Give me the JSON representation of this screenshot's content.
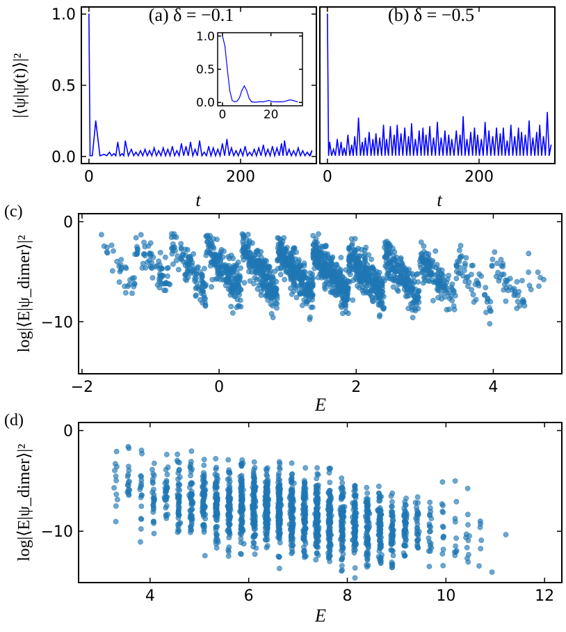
{
  "chart_data": [
    {
      "id": "a",
      "type": "line",
      "panel_label": "(a)",
      "title": "(a) δ = −0.1",
      "xlabel": "t",
      "ylabel": "|⟨ψ|ψ(t)⟩|²",
      "xlim": [
        -10,
        300
      ],
      "ylim": [
        -0.05,
        1.05
      ],
      "xticks": [
        0,
        200
      ],
      "xtick_labels": [
        "0",
        "200"
      ],
      "yticks": [
        0.0,
        0.5,
        1.0
      ],
      "ytick_labels": [
        "0.0",
        "0.5",
        "1.0"
      ],
      "color": "#0000ff",
      "peaks": [
        [
          0,
          1.0
        ],
        [
          9,
          0.25
        ],
        [
          20,
          0.015
        ],
        [
          27,
          0.03
        ],
        [
          33,
          0.02
        ],
        [
          38,
          0.1
        ],
        [
          44,
          0.02
        ],
        [
          48,
          0.11
        ],
        [
          56,
          0.05
        ],
        [
          62,
          0.03
        ],
        [
          68,
          0.04
        ],
        [
          74,
          0.05
        ],
        [
          80,
          0.04
        ],
        [
          86,
          0.06
        ],
        [
          92,
          0.04
        ],
        [
          98,
          0.06
        ],
        [
          104,
          0.05
        ],
        [
          110,
          0.07
        ],
        [
          116,
          0.04
        ],
        [
          122,
          0.09
        ],
        [
          128,
          0.07
        ],
        [
          134,
          0.1
        ],
        [
          140,
          0.05
        ],
        [
          146,
          0.11
        ],
        [
          152,
          0.03
        ],
        [
          158,
          0.07
        ],
        [
          164,
          0.06
        ],
        [
          170,
          0.05
        ],
        [
          176,
          0.09
        ],
        [
          182,
          0.12
        ],
        [
          188,
          0.06
        ],
        [
          194,
          0.04
        ],
        [
          200,
          0.05
        ],
        [
          206,
          0.07
        ],
        [
          212,
          0.03
        ],
        [
          218,
          0.05
        ],
        [
          224,
          0.06
        ],
        [
          230,
          0.08
        ],
        [
          236,
          0.05
        ],
        [
          242,
          0.07
        ],
        [
          248,
          0.06
        ],
        [
          254,
          0.09
        ],
        [
          258,
          0.11
        ],
        [
          264,
          0.05
        ],
        [
          270,
          0.04
        ],
        [
          276,
          0.06
        ],
        [
          282,
          0.04
        ],
        [
          288,
          0.03
        ],
        [
          294,
          0.04
        ]
      ],
      "inset": {
        "type": "line",
        "xlim": [
          -2,
          33
        ],
        "ylim": [
          -0.05,
          1.05
        ],
        "xticks": [
          0,
          20
        ],
        "xtick_labels": [
          "0",
          "20"
        ],
        "yticks": [
          0.0,
          0.5,
          1.0
        ],
        "ytick_labels": [
          "0.0",
          "0.5",
          "1.0"
        ],
        "x": [
          0,
          1,
          2,
          3,
          4,
          5,
          6,
          7,
          8,
          9,
          10,
          11,
          12,
          13,
          14,
          15,
          16,
          17,
          18,
          19,
          20,
          21,
          22,
          23,
          24,
          25,
          26,
          27,
          28,
          29,
          30,
          31
        ],
        "y": [
          1.0,
          0.85,
          0.5,
          0.18,
          0.03,
          0.01,
          0.02,
          0.07,
          0.18,
          0.25,
          0.18,
          0.06,
          0.01,
          0.005,
          0.005,
          0.01,
          0.01,
          0.01,
          0.02,
          0.03,
          0.02,
          0.01,
          0.01,
          0.01,
          0.01,
          0.01,
          0.02,
          0.03,
          0.04,
          0.03,
          0.02,
          0.01
        ]
      }
    },
    {
      "id": "b",
      "type": "line",
      "panel_label": "(b)",
      "title": "(b) δ = −0.5",
      "xlabel": "t",
      "xlim": [
        -10,
        300
      ],
      "ylim": [
        -0.05,
        1.05
      ],
      "xticks": [
        0,
        200
      ],
      "xtick_labels": [
        "0",
        "200"
      ],
      "color": "#0000ff",
      "peaks": [
        [
          0,
          1.0
        ],
        [
          3,
          0.1
        ],
        [
          8,
          0.05
        ],
        [
          13,
          0.12
        ],
        [
          18,
          0.1
        ],
        [
          22,
          0.06
        ],
        [
          27,
          0.15
        ],
        [
          32,
          0.08
        ],
        [
          36,
          0.14
        ],
        [
          41,
          0.27
        ],
        [
          46,
          0.1
        ],
        [
          50,
          0.13
        ],
        [
          55,
          0.17
        ],
        [
          60,
          0.12
        ],
        [
          64,
          0.16
        ],
        [
          69,
          0.13
        ],
        [
          74,
          0.22
        ],
        [
          78,
          0.12
        ],
        [
          83,
          0.21
        ],
        [
          88,
          0.15
        ],
        [
          92,
          0.22
        ],
        [
          97,
          0.16
        ],
        [
          102,
          0.2
        ],
        [
          107,
          0.14
        ],
        [
          111,
          0.23
        ],
        [
          116,
          0.12
        ],
        [
          121,
          0.18
        ],
        [
          126,
          0.2
        ],
        [
          130,
          0.15
        ],
        [
          135,
          0.21
        ],
        [
          140,
          0.13
        ],
        [
          145,
          0.24
        ],
        [
          150,
          0.13
        ],
        [
          155,
          0.18
        ],
        [
          160,
          0.15
        ],
        [
          164,
          0.12
        ],
        [
          170,
          0.18
        ],
        [
          175,
          0.15
        ],
        [
          179,
          0.28
        ],
        [
          184,
          0.12
        ],
        [
          189,
          0.17
        ],
        [
          194,
          0.2
        ],
        [
          198,
          0.15
        ],
        [
          203,
          0.12
        ],
        [
          208,
          0.24
        ],
        [
          213,
          0.18
        ],
        [
          218,
          0.14
        ],
        [
          223,
          0.2
        ],
        [
          228,
          0.16
        ],
        [
          232,
          0.2
        ],
        [
          237,
          0.11
        ],
        [
          242,
          0.22
        ],
        [
          247,
          0.14
        ],
        [
          252,
          0.2
        ],
        [
          256,
          0.17
        ],
        [
          261,
          0.15
        ],
        [
          266,
          0.25
        ],
        [
          271,
          0.13
        ],
        [
          276,
          0.17
        ],
        [
          280,
          0.22
        ],
        [
          285,
          0.14
        ],
        [
          290,
          0.31
        ],
        [
          295,
          0.08
        ]
      ]
    },
    {
      "id": "c",
      "type": "scatter",
      "panel_label": "(c)",
      "xlabel": "E",
      "ylabel": "log|⟨E|ψ_dimer⟩|²",
      "xlim": [
        -2.05,
        5.0
      ],
      "ylim": [
        -15.2,
        0.8
      ],
      "xticks": [
        -2,
        0,
        2,
        4
      ],
      "xtick_labels": [
        "−2",
        "0",
        "2",
        "4"
      ],
      "yticks": [
        0,
        -10
      ],
      "ytick_labels": [
        "0",
        "−10"
      ],
      "color": "#1f77b4",
      "n_points": 1800,
      "seed": 7,
      "energy_range": [
        -1.75,
        4.75
      ],
      "energy_peak": 1.4,
      "energy_spread": 1.35,
      "band_period": 0.52,
      "band_top": -2.3,
      "band_depth": 4.2,
      "slope": -0.75,
      "noise": 1.5,
      "min_log": -12.0
    },
    {
      "id": "d",
      "type": "scatter",
      "panel_label": "(d)",
      "xlabel": "E",
      "ylabel": "log|⟨E|ψ_dimer⟩|²",
      "xlim": [
        2.55,
        12.35
      ],
      "ylim": [
        -15.1,
        0.8
      ],
      "xticks": [
        4,
        6,
        8,
        10,
        12
      ],
      "xtick_labels": [
        "4",
        "6",
        "8",
        "10",
        "12"
      ],
      "yticks": [
        0,
        -10
      ],
      "ytick_labels": [
        "0",
        "−10"
      ],
      "color": "#1f77b4",
      "n_points": 1800,
      "seed": 11,
      "energy_range": [
        3.0,
        11.85
      ],
      "energy_peak": 6.9,
      "energy_spread": 1.55,
      "column_period": 0.255,
      "column_offset": 3.05,
      "top_start": -1.0,
      "top_slope": -0.55,
      "base_mean_start": -5.5,
      "base_slope": -0.7,
      "noise": 2.6,
      "min_log": -15.0
    }
  ]
}
